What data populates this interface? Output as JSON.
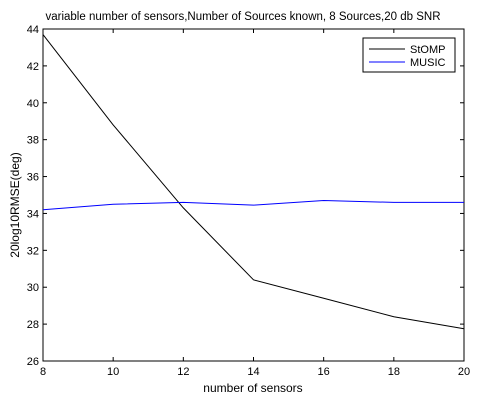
{
  "chart_data": {
    "type": "line",
    "title": "variable number of sensors,Number of Sources known, 8 Sources,20 db SNR",
    "xlabel": "number of sensors",
    "ylabel": "20log10RMSE(deg)",
    "x": [
      8,
      10,
      12,
      14,
      16,
      18,
      20
    ],
    "xlim": [
      8,
      20
    ],
    "ylim": [
      26,
      44
    ],
    "xticks": [
      8,
      10,
      12,
      14,
      16,
      18,
      20
    ],
    "yticks": [
      26,
      28,
      30,
      32,
      34,
      36,
      38,
      40,
      42,
      44
    ],
    "grid": false,
    "legend_position": "top-right",
    "series": [
      {
        "name": "StOMP",
        "color": "#000000",
        "values": [
          43.7,
          38.8,
          34.3,
          30.4,
          29.4,
          28.4,
          27.75
        ]
      },
      {
        "name": "MUSIC",
        "color": "#0000ff",
        "values": [
          34.2,
          34.5,
          34.6,
          34.45,
          34.7,
          34.6,
          34.6
        ]
      }
    ]
  }
}
